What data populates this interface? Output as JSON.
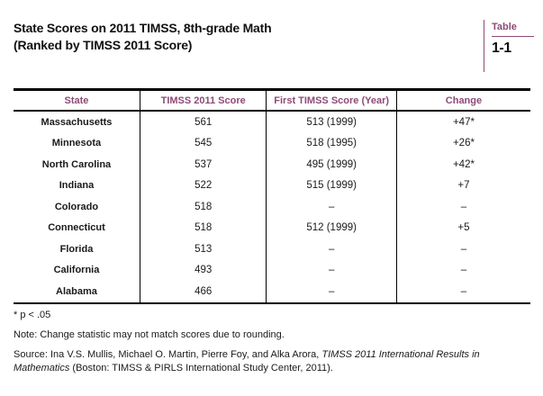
{
  "colors": {
    "accent_plum": "#8e4a76",
    "rule_black": "#000000",
    "text": "#1a1a1a"
  },
  "header": {
    "title_line1": "State Scores on 2011 TIMSS, 8th-grade Math",
    "title_line2": "(Ranked by TIMSS 2011 Score)",
    "badge": {
      "label": "Table",
      "number": "1-1"
    }
  },
  "table": {
    "columns": [
      "State",
      "TIMSS 2011 Score",
      "First TIMSS Score (Year)",
      "Change"
    ],
    "rows": [
      {
        "state": "Massachusetts",
        "score_2011": "561",
        "first_score": "513 (1999)",
        "change": "+47*"
      },
      {
        "state": "Minnesota",
        "score_2011": "545",
        "first_score": "518 (1995)",
        "change": "+26*"
      },
      {
        "state": "North Carolina",
        "score_2011": "537",
        "first_score": "495 (1999)",
        "change": "+42*"
      },
      {
        "state": "Indiana",
        "score_2011": "522",
        "first_score": "515 (1999)",
        "change": "+7"
      },
      {
        "state": "Colorado",
        "score_2011": "518",
        "first_score": "–",
        "change": "–"
      },
      {
        "state": "Connecticut",
        "score_2011": "518",
        "first_score": "512 (1999)",
        "change": "+5"
      },
      {
        "state": "Florida",
        "score_2011": "513",
        "first_score": "–",
        "change": "–"
      },
      {
        "state": "California",
        "score_2011": "493",
        "first_score": "–",
        "change": "–"
      },
      {
        "state": "Alabama",
        "score_2011": "466",
        "first_score": "–",
        "change": "–"
      }
    ]
  },
  "notes": {
    "significance": "* p < .05",
    "rounding_note": "Note: Change statistic may not match scores due to rounding.",
    "source_prefix": "Source: Ina V.S. Mullis, Michael O. Martin, Pierre Foy, and Alka Arora, ",
    "source_italic": "TIMSS 2011 International Results in Mathematics",
    "source_suffix": " (Boston: TIMSS & PIRLS International Study Center, 2011)."
  }
}
